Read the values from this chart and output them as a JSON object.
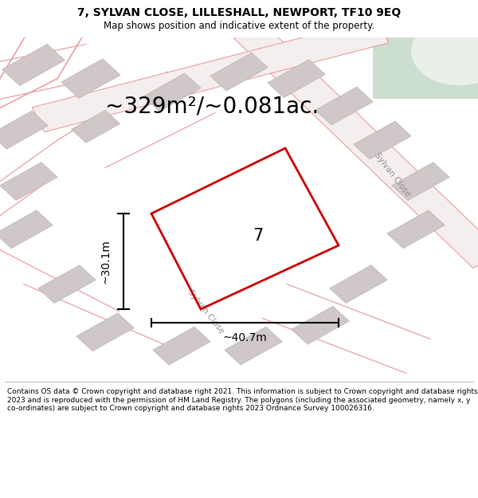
{
  "title_line1": "7, SYLVAN CLOSE, LILLESHALL, NEWPORT, TF10 9EQ",
  "title_line2": "Map shows position and indicative extent of the property.",
  "area_text": "~329m²/~0.081ac.",
  "dim_width": "~40.7m",
  "dim_height": "~30.1m",
  "plot_number": "7",
  "footer_text": "Contains OS data © Crown copyright and database right 2021. This information is subject to Crown copyright and database rights 2023 and is reproduced with the permission of HM Land Registry. The polygons (including the associated geometry, namely x, y co-ordinates) are subject to Crown copyright and database rights 2023 Ordnance Survey 100026316.",
  "map_bg": "#f7f0f0",
  "road_color": "#e8a0a0",
  "building_fill": "#d0c8c8",
  "building_stroke": "#bbb0b0",
  "green_fill": "#ccdece",
  "red_plot_color": "#cc0000",
  "title_fontsize": 10,
  "subtitle_fontsize": 8.5,
  "footer_fontsize": 6.5,
  "area_fontsize": 20,
  "dim_fontsize": 10
}
